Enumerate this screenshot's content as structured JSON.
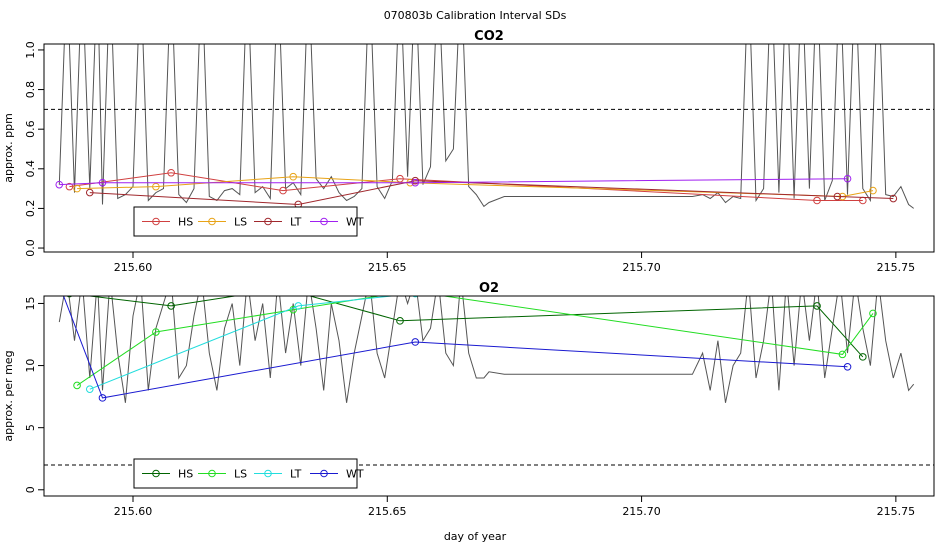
{
  "figure": {
    "title": "070803b   Calibration Interval SDs",
    "xlabel": "day of year"
  },
  "chart_data": [
    {
      "type": "line",
      "title": "CO2",
      "xlabel": "",
      "ylabel": "approx. ppm",
      "xlim": [
        215.5825,
        215.7575
      ],
      "ylim": [
        -0.02,
        1.03
      ],
      "xticks": [
        "215.60",
        "215.65",
        "215.70",
        "215.75"
      ],
      "xtick_values": [
        215.6,
        215.65,
        215.7,
        215.75
      ],
      "yticks": [
        "0.0",
        "0.2",
        "0.4",
        "0.6",
        "0.8",
        "1.0"
      ],
      "ytick_values": [
        0.0,
        0.2,
        0.4,
        0.6,
        0.8,
        1.0
      ],
      "threshold": 0.7,
      "legend_position": "bottom-left",
      "background_trace": {
        "color": "#555555",
        "x": [
          215.5855,
          215.587,
          215.5885,
          215.59,
          215.5915,
          215.593,
          215.594,
          215.5955,
          215.597,
          215.5985,
          215.6,
          215.6015,
          215.603,
          215.6045,
          215.606,
          215.6075,
          215.609,
          215.6105,
          215.612,
          215.6135,
          215.615,
          215.6165,
          215.618,
          215.6195,
          215.621,
          215.6225,
          215.624,
          215.6255,
          215.627,
          215.6285,
          215.63,
          215.6315,
          215.633,
          215.6345,
          215.636,
          215.6375,
          215.639,
          215.6405,
          215.642,
          215.6435,
          215.645,
          215.6465,
          215.648,
          215.6495,
          215.651,
          215.6525,
          215.654,
          215.6555,
          215.657,
          215.6585,
          215.66,
          215.6615,
          215.663,
          215.6645,
          215.666,
          215.6675,
          215.669,
          215.67,
          215.673,
          215.69,
          215.71,
          215.712,
          215.7135,
          215.715,
          215.7165,
          215.718,
          215.7195,
          215.721,
          215.7225,
          215.724,
          215.7255,
          215.727,
          215.7285,
          215.73,
          215.7315,
          215.733,
          215.7345,
          215.736,
          215.7375,
          215.739,
          215.7405,
          215.742,
          215.7435,
          215.745,
          215.7465,
          215.748,
          215.7495,
          215.751,
          215.7525,
          215.7535
        ],
        "y": [
          0.32,
          1.4,
          0.28,
          1.4,
          0.3,
          1.4,
          0.22,
          1.4,
          0.25,
          0.27,
          0.31,
          1.4,
          0.24,
          0.28,
          0.3,
          1.4,
          0.27,
          0.23,
          0.3,
          1.4,
          0.26,
          0.24,
          0.29,
          0.3,
          0.27,
          1.4,
          0.28,
          0.31,
          0.25,
          1.4,
          0.3,
          0.33,
          0.27,
          1.4,
          0.35,
          0.3,
          0.36,
          0.28,
          0.24,
          0.26,
          0.3,
          1.4,
          0.31,
          0.25,
          0.34,
          1.4,
          0.36,
          1.4,
          0.32,
          0.41,
          1.4,
          0.44,
          0.5,
          1.4,
          0.31,
          0.27,
          0.21,
          0.23,
          0.26,
          0.26,
          0.26,
          0.27,
          0.25,
          0.28,
          0.23,
          0.26,
          0.25,
          1.4,
          0.24,
          0.3,
          1.4,
          0.28,
          1.4,
          0.25,
          1.4,
          0.3,
          1.4,
          0.24,
          0.34,
          1.4,
          0.27,
          1.4,
          0.3,
          0.24,
          1.4,
          0.27,
          0.26,
          0.31,
          0.22,
          0.2
        ]
      },
      "series": [
        {
          "name": "HS",
          "color": "#d04040",
          "x": [
            215.5875,
            215.6075,
            215.6295,
            215.6525,
            215.7345,
            215.7435
          ],
          "y": [
            0.31,
            0.38,
            0.29,
            0.35,
            0.24,
            0.24
          ]
        },
        {
          "name": "LS",
          "color": "#e8a317",
          "x": [
            215.589,
            215.6045,
            215.6315,
            215.6545,
            215.7395,
            215.7455
          ],
          "y": [
            0.3,
            0.31,
            0.36,
            0.33,
            0.26,
            0.29
          ]
        },
        {
          "name": "LT",
          "color": "#a0282d",
          "x": [
            215.5915,
            215.6325,
            215.6555,
            215.7385,
            215.7495
          ],
          "y": [
            0.28,
            0.22,
            0.34,
            0.26,
            0.25
          ]
        },
        {
          "name": "WT",
          "color": "#a020f0",
          "x": [
            215.5855,
            215.594,
            215.6555,
            215.7405
          ],
          "y": [
            0.32,
            0.33,
            0.33,
            0.35
          ]
        }
      ]
    },
    {
      "type": "line",
      "title": "O2",
      "xlabel": "day of year",
      "ylabel": "approx. per meg",
      "xlim": [
        215.5825,
        215.7575
      ],
      "ylim": [
        -0.5,
        15.6
      ],
      "xticks": [
        "215.60",
        "215.65",
        "215.70",
        "215.75"
      ],
      "xtick_values": [
        215.6,
        215.65,
        215.7,
        215.75
      ],
      "yticks": [
        "0",
        "5",
        "10",
        "15"
      ],
      "ytick_values": [
        0,
        5,
        10,
        15
      ],
      "threshold": 2.0,
      "legend_position": "bottom-left",
      "background_trace": {
        "color": "#555555",
        "x": [
          215.5855,
          215.587,
          215.5885,
          215.59,
          215.5915,
          215.593,
          215.594,
          215.5955,
          215.597,
          215.5985,
          215.6,
          215.6015,
          215.603,
          215.6045,
          215.606,
          215.6075,
          215.609,
          215.6105,
          215.612,
          215.6135,
          215.615,
          215.6165,
          215.618,
          215.6195,
          215.621,
          215.6225,
          215.624,
          215.6255,
          215.627,
          215.6285,
          215.63,
          215.6315,
          215.633,
          215.6345,
          215.636,
          215.6375,
          215.639,
          215.6405,
          215.642,
          215.6435,
          215.645,
          215.6465,
          215.648,
          215.6495,
          215.651,
          215.6525,
          215.654,
          215.6555,
          215.657,
          215.6585,
          215.66,
          215.6615,
          215.663,
          215.6645,
          215.666,
          215.6675,
          215.669,
          215.67,
          215.673,
          215.69,
          215.71,
          215.712,
          215.7135,
          215.715,
          215.7165,
          215.718,
          215.7195,
          215.721,
          215.7225,
          215.724,
          215.7255,
          215.727,
          215.7285,
          215.73,
          215.7315,
          215.733,
          215.7345,
          215.736,
          215.7375,
          215.739,
          215.7405,
          215.742,
          215.7435,
          215.745,
          215.7465,
          215.748,
          215.7495,
          215.751,
          215.7525,
          215.7535
        ],
        "y": [
          13.5,
          17,
          12,
          17,
          9,
          17,
          8,
          17,
          11,
          7,
          14,
          17,
          8,
          13,
          15,
          17,
          9,
          10,
          14,
          17,
          11,
          8,
          13,
          15,
          10,
          17,
          12,
          15,
          9,
          17,
          11,
          15,
          10,
          17,
          13,
          8,
          15,
          12,
          7,
          11,
          14,
          17,
          11,
          9,
          13,
          17,
          15,
          17,
          12,
          13,
          17,
          11,
          10,
          17,
          11,
          9,
          9,
          9.5,
          9.3,
          9.3,
          9.3,
          11,
          8,
          12,
          7,
          10,
          11,
          17,
          9,
          12,
          17,
          8,
          17,
          10,
          17,
          12,
          17,
          9,
          13,
          17,
          11,
          17,
          13,
          10,
          17,
          12,
          9,
          11,
          8,
          8.5
        ]
      },
      "series": [
        {
          "name": "HS",
          "color": "#006400",
          "x": [
            215.5875,
            215.6075,
            215.6295,
            215.6525,
            215.7345,
            215.7435
          ],
          "y": [
            15.8,
            14.8,
            16.2,
            13.6,
            14.8,
            10.7
          ]
        },
        {
          "name": "LS",
          "color": "#22dd22",
          "x": [
            215.589,
            215.6045,
            215.6315,
            215.6545,
            215.7395,
            215.7455
          ],
          "y": [
            8.4,
            12.7,
            14.5,
            16.0,
            10.9,
            14.2
          ]
        },
        {
          "name": "LT",
          "color": "#22dddd",
          "x": [
            215.5915,
            215.6325,
            215.6555,
            215.7385,
            215.7495
          ],
          "y": [
            8.1,
            14.8,
            15.8,
            16.2,
            16.4
          ]
        },
        {
          "name": "WT",
          "color": "#1a1ad0",
          "x": [
            215.5855,
            215.594,
            215.6555,
            215.7405
          ],
          "y": [
            16.5,
            7.4,
            11.9,
            9.9
          ]
        }
      ]
    }
  ]
}
